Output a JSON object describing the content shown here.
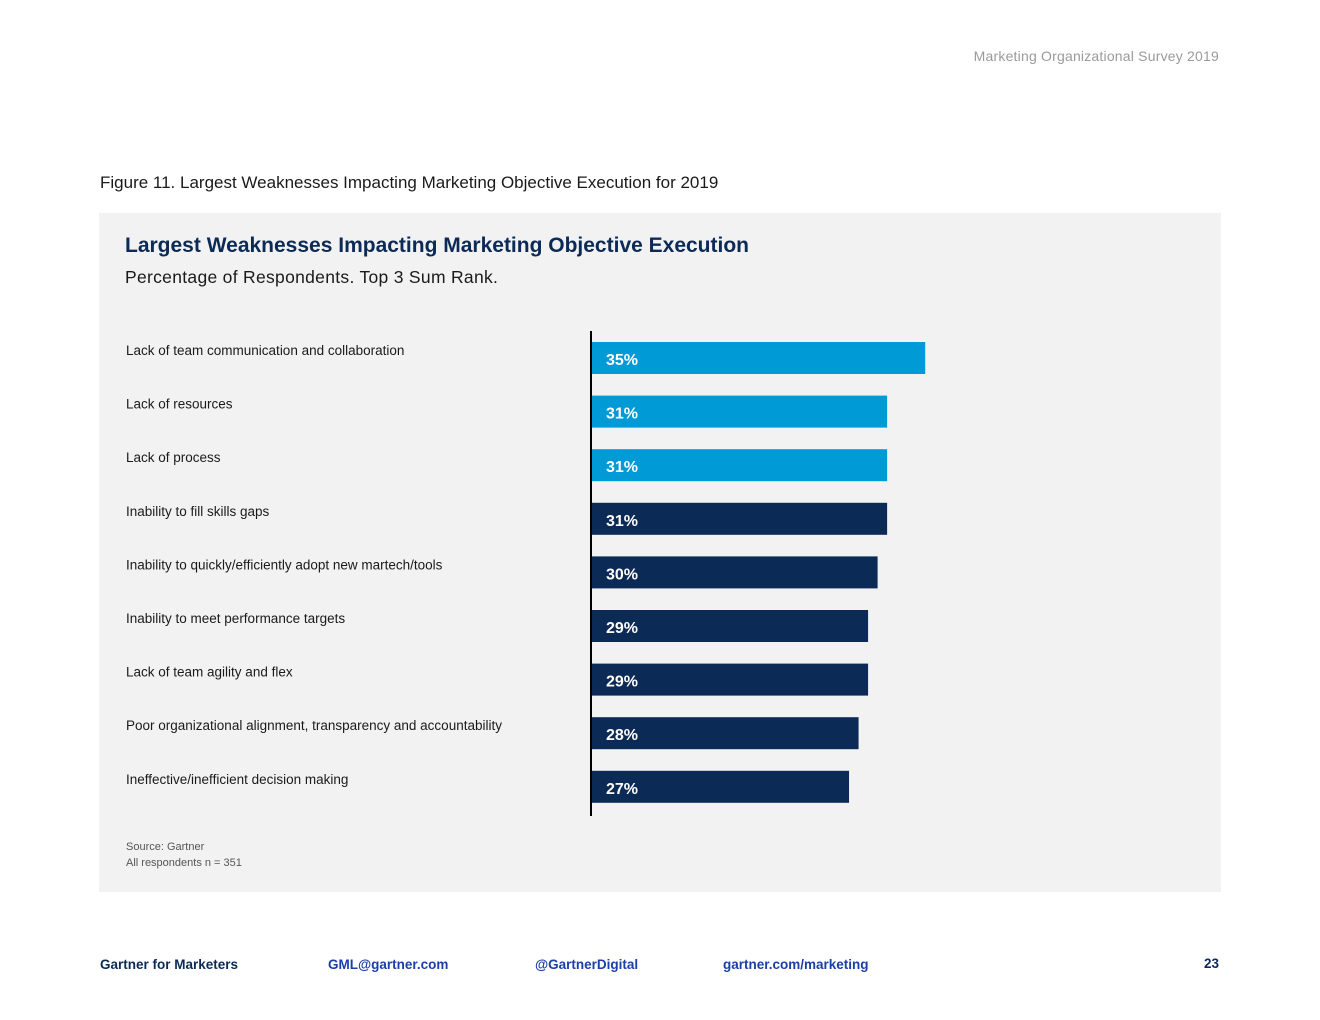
{
  "header": {
    "survey_title": "Marketing Organizational Survey 2019"
  },
  "figure_caption": "Figure 11. Largest Weaknesses Impacting Marketing Objective Execution for 2019",
  "chart_data": {
    "type": "bar",
    "orientation": "horizontal",
    "title": "Largest Weaknesses Impacting Marketing Objective Execution",
    "subtitle": "Percentage of Respondents. Top 3 Sum Rank.",
    "categories": [
      "Lack of team communication and collaboration",
      "Lack of resources",
      "Lack of process",
      "Inability to fill skills gaps",
      "Inability to quickly/efficiently adopt new martech/tools",
      "Inability to meet performance targets",
      "Lack of team agility and flex",
      "Poor organizational alignment, transparency and accountability",
      "Ineffective/inefficient decision making"
    ],
    "values": [
      35,
      31,
      31,
      31,
      30,
      29,
      29,
      28,
      27
    ],
    "value_labels": [
      "35%",
      "31%",
      "31%",
      "31%",
      "30%",
      "29%",
      "29%",
      "28%",
      "27%"
    ],
    "highlighted_top": 3,
    "colors": {
      "highlight": "#009ad7",
      "default": "#0b2a56",
      "label_text": "#ffffff",
      "axis": "#000000"
    },
    "xlim": [
      0,
      50
    ],
    "grid": false,
    "legend": "none"
  },
  "source": {
    "line1": "Source: Gartner",
    "line2": "All respondents n = 351"
  },
  "footer": {
    "brand": "Gartner for Marketers",
    "email": "GML@gartner.com",
    "twitter": "@GartnerDigital",
    "website": "gartner.com/marketing",
    "page_number": "23"
  }
}
